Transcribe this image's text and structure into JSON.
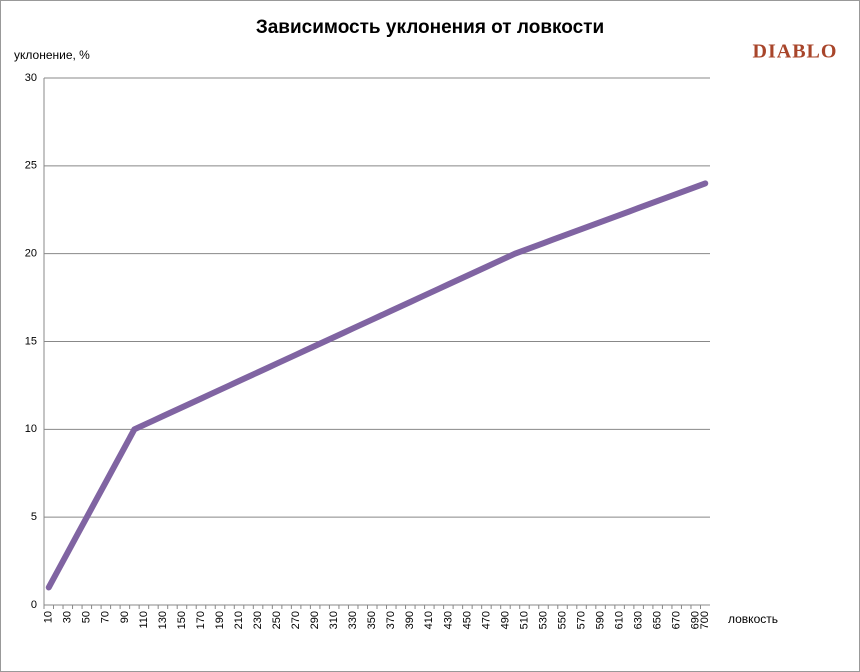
{
  "chart_data": {
    "type": "line",
    "title": "Зависимость уклонения от ловкости",
    "y_label": "уклонение, %",
    "x_label": "ловкость",
    "logo": "DIABLO",
    "categories": [
      "10",
      null,
      "30",
      null,
      "50",
      null,
      "70",
      null,
      "90",
      null,
      "110",
      null,
      "130",
      null,
      "150",
      null,
      "170",
      null,
      "190",
      null,
      "210",
      null,
      "230",
      null,
      "250",
      null,
      "270",
      null,
      "290",
      null,
      "310",
      null,
      "330",
      null,
      "350",
      null,
      "370",
      null,
      "390",
      null,
      "410",
      null,
      "430",
      null,
      "450",
      null,
      "470",
      null,
      "490",
      null,
      "510",
      null,
      "530",
      null,
      "550",
      null,
      "570",
      null,
      "590",
      null,
      "610",
      null,
      "630",
      null,
      "650",
      null,
      "670",
      null,
      "690",
      "700"
    ],
    "series": [
      {
        "name": "уклонение",
        "color": "#8064a2",
        "values": [
          1,
          2,
          3,
          4,
          5,
          6,
          7,
          8,
          9,
          10,
          10.25,
          10.5,
          10.75,
          11,
          11.25,
          11.5,
          11.75,
          12,
          12.25,
          12.5,
          12.75,
          13,
          13.25,
          13.5,
          13.75,
          14,
          14.25,
          14.5,
          14.75,
          15,
          15.25,
          15.5,
          15.75,
          16,
          16.25,
          16.5,
          16.75,
          17,
          17.25,
          17.5,
          17.75,
          18,
          18.25,
          18.5,
          18.75,
          19,
          19.25,
          19.5,
          19.75,
          20,
          20.2,
          20.4,
          20.6,
          20.8,
          21,
          21.2,
          21.4,
          21.6,
          21.8,
          22,
          22.2,
          22.4,
          22.6,
          22.8,
          23,
          23.2,
          23.4,
          23.6,
          23.8,
          24
        ]
      }
    ],
    "ylim": [
      0,
      30
    ],
    "yticks": [
      0,
      5,
      10,
      15,
      20,
      25,
      30
    ],
    "grid": true
  }
}
